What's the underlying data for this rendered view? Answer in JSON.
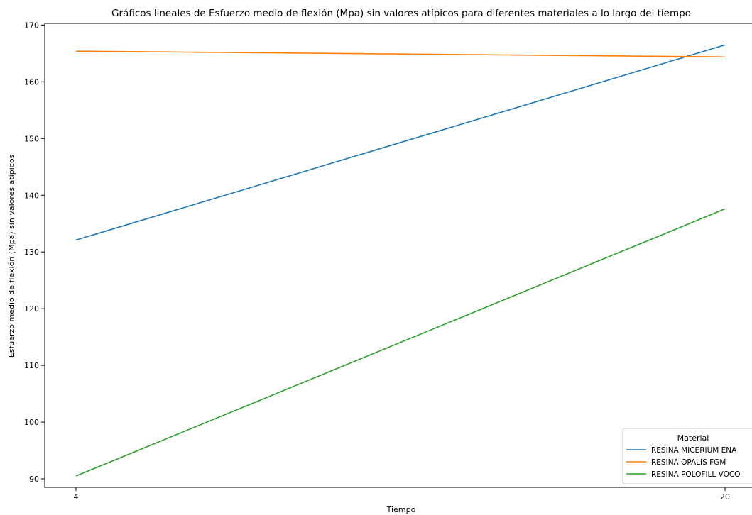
{
  "chart_data": {
    "type": "line",
    "title": "Gráficos lineales de Esfuerzo medio de flexión (Mpa) sin valores atípicos para diferentes materiales a lo largo del tiempo",
    "xlabel": "Tiempo",
    "ylabel": "Esfuerzo medio de flexión (Mpa) sin valores atípicos",
    "x": [
      4,
      20
    ],
    "x_ticks": [
      "4",
      "20"
    ],
    "y_ticks": [
      90,
      100,
      110,
      120,
      130,
      140,
      150,
      160,
      170
    ],
    "ylim": [
      88.5,
      170.3
    ],
    "grid": false,
    "legend": {
      "title": "Material",
      "placement": "bottom-right"
    },
    "series": [
      {
        "name": "RESINA MICERIUM ENA",
        "color": "#1f77b4",
        "values": [
          132.1,
          166.5
        ]
      },
      {
        "name": "RESINA OPALIS FGM",
        "color": "#ff7f0e",
        "values": [
          165.4,
          164.4
        ]
      },
      {
        "name": "RESINA POLOFILL VOCO",
        "color": "#2ca02c",
        "values": [
          90.5,
          137.6
        ]
      }
    ]
  }
}
